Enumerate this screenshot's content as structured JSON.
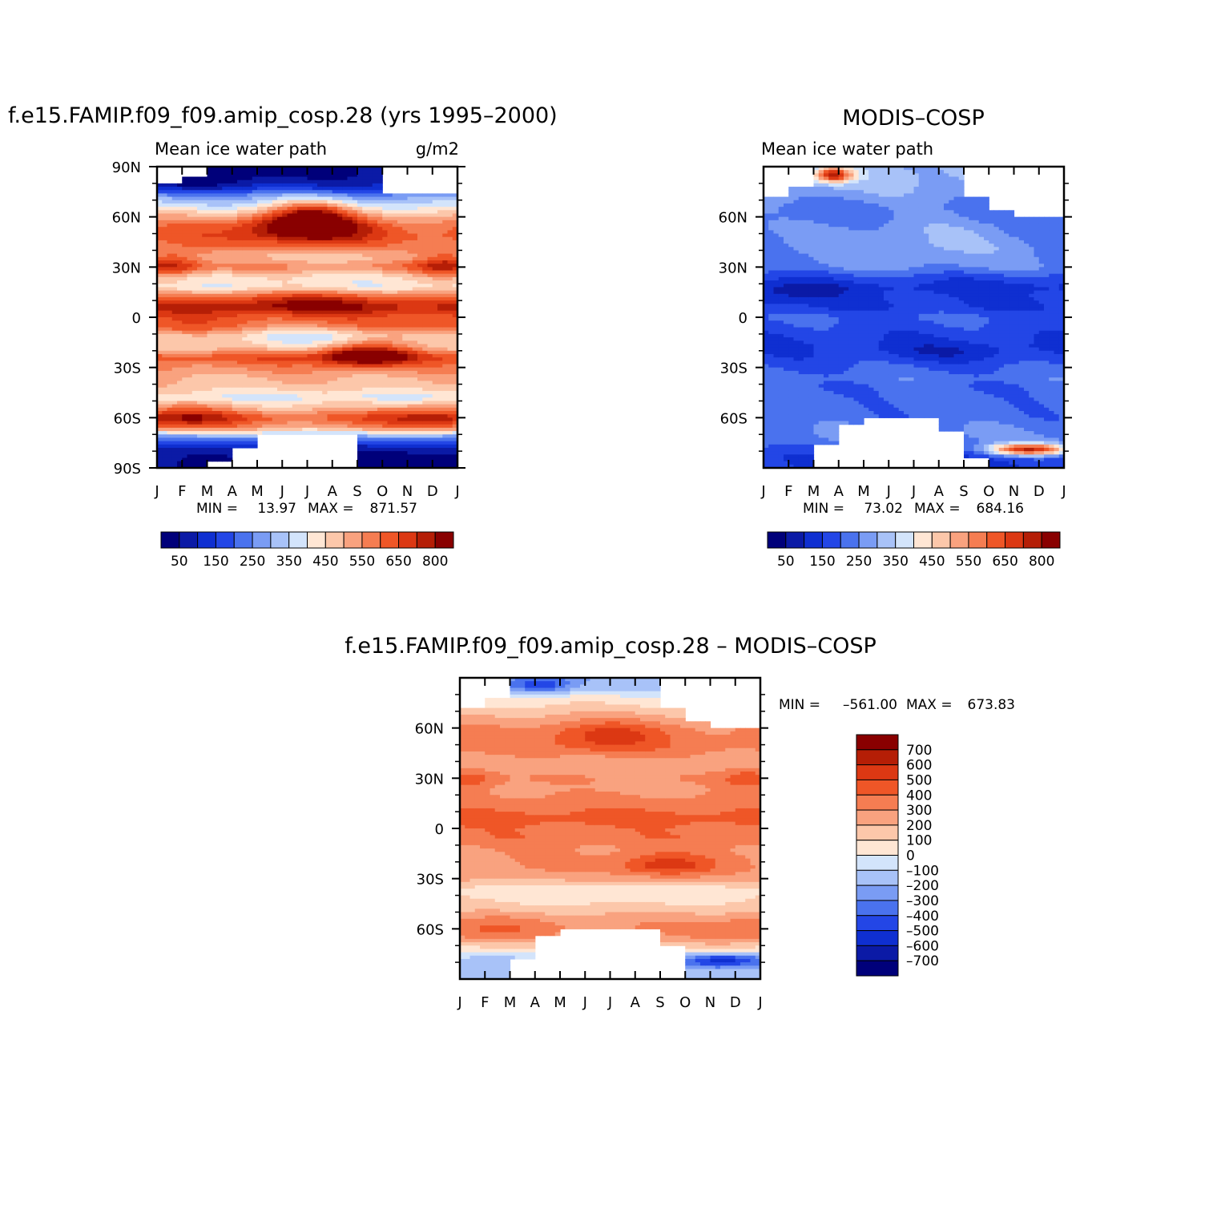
{
  "palette": {
    "blues": [
      "#00007a",
      "#0b1aa6",
      "#0f2fd1",
      "#2346e6",
      "#4a72ee",
      "#7a9cf4",
      "#a8c2f8",
      "#d3e4fb"
    ],
    "reds": [
      "#ffe6d4",
      "#fcc7aa",
      "#f9a27f",
      "#f57d52",
      "#ef5627",
      "#dc3813",
      "#b51e06",
      "#890000"
    ],
    "white": "#ffffff"
  },
  "chart_data": [
    {
      "id": "model",
      "type": "heatmap",
      "title": "f.e15.FAMIP.f09_f09.amip_cosp.28 (yrs 1995–2000)",
      "left_label": "Mean ice water path",
      "right_label": "g/m2",
      "x_ticks": [
        "J",
        "F",
        "M",
        "A",
        "M",
        "J",
        "J",
        "A",
        "S",
        "O",
        "N",
        "D",
        "J"
      ],
      "y_ticks": [
        "90N",
        "60N",
        "30N",
        "0",
        "30S",
        "60S",
        "90S"
      ],
      "y_tick_values": [
        90,
        60,
        30,
        0,
        -30,
        -60,
        -90
      ],
      "x_range": [
        0,
        12
      ],
      "y_range": [
        -90,
        90
      ],
      "stats_min_label": "MIN =",
      "stats_min": "13.97",
      "stats_max_label": "MAX =",
      "stats_max": "871.57",
      "colorbar_orientation": "horizontal",
      "colorbar_labels": [
        "50",
        "150",
        "250",
        "350",
        "450",
        "550",
        "650",
        "800"
      ],
      "zero_level": 0,
      "missing": [
        {
          "months": [
            0,
            1
          ],
          "lat": [
            80,
            90
          ]
        },
        {
          "months": [
            1,
            2
          ],
          "lat": [
            85,
            90
          ]
        },
        {
          "months": [
            9,
            12
          ],
          "lat": [
            75,
            90
          ]
        },
        {
          "months": [
            4,
            8
          ],
          "lat": [
            -90,
            -70
          ]
        },
        {
          "months": [
            3,
            4
          ],
          "lat": [
            -90,
            -78
          ]
        },
        {
          "months": [
            2,
            3
          ],
          "lat": [
            -90,
            -86
          ]
        },
        {
          "months": [
            7,
            8
          ],
          "lat": [
            -90,
            -75
          ]
        }
      ],
      "lat_profile": [
        [
          -88,
          40
        ],
        [
          -84,
          60
        ],
        [
          -78,
          100
        ],
        [
          -72,
          240
        ],
        [
          -66,
          520
        ],
        [
          -60,
          620
        ],
        [
          -54,
          480
        ],
        [
          -48,
          380
        ],
        [
          -42,
          470
        ],
        [
          -36,
          500
        ],
        [
          -30,
          560
        ],
        [
          -24,
          640
        ],
        [
          -18,
          480
        ],
        [
          -12,
          500
        ],
        [
          -6,
          640
        ],
        [
          0,
          640
        ],
        [
          6,
          700
        ],
        [
          12,
          560
        ],
        [
          18,
          400
        ],
        [
          24,
          430
        ],
        [
          30,
          560
        ],
        [
          36,
          470
        ],
        [
          42,
          560
        ],
        [
          48,
          620
        ],
        [
          54,
          600
        ],
        [
          60,
          500
        ],
        [
          66,
          380
        ],
        [
          72,
          280
        ],
        [
          78,
          120
        ],
        [
          84,
          60
        ],
        [
          90,
          40
        ]
      ],
      "blobs": [
        {
          "m": 6.0,
          "lat": 55,
          "sm": 1.6,
          "slat": 7,
          "amp": 300
        },
        {
          "m": 6.2,
          "lat": 64,
          "sm": 1.0,
          "slat": 5,
          "amp": 160
        },
        {
          "m": 8.3,
          "lat": -22,
          "sm": 1.2,
          "slat": 5,
          "amp": 300
        },
        {
          "m": 0.5,
          "lat": 32,
          "sm": 0.9,
          "slat": 6,
          "amp": 200
        },
        {
          "m": 11.6,
          "lat": 32,
          "sm": 0.9,
          "slat": 6,
          "amp": 200
        },
        {
          "m": 1.0,
          "lat": -60,
          "sm": 1.5,
          "slat": 6,
          "amp": 150
        },
        {
          "m": 11.0,
          "lat": -60,
          "sm": 1.5,
          "slat": 6,
          "amp": 140
        },
        {
          "m": 6.0,
          "lat": 10,
          "sm": 3.0,
          "slat": 5,
          "amp": 120
        },
        {
          "m": 2.0,
          "lat": 85,
          "sm": 1.8,
          "slat": 6,
          "amp": -80
        },
        {
          "m": 10.5,
          "lat": -85,
          "sm": 2.0,
          "slat": 6,
          "amp": -60
        },
        {
          "m": 6.0,
          "lat": -10,
          "sm": 2.5,
          "slat": 5,
          "amp": -150
        }
      ]
    },
    {
      "id": "obs",
      "type": "heatmap",
      "title": "MODIS–COSP",
      "left_label": "Mean ice water path",
      "right_label": "",
      "x_ticks": [
        "J",
        "F",
        "M",
        "A",
        "M",
        "J",
        "J",
        "A",
        "S",
        "O",
        "N",
        "D",
        "J"
      ],
      "y_ticks": [
        "60N",
        "30N",
        "0",
        "30S",
        "60S"
      ],
      "y_tick_values": [
        60,
        30,
        0,
        -30,
        -60
      ],
      "x_range": [
        0,
        12
      ],
      "y_range": [
        -90,
        90
      ],
      "stats_min_label": "MIN =",
      "stats_min": "73.02",
      "stats_max_label": "MAX =",
      "stats_max": "684.16",
      "colorbar_orientation": "horizontal",
      "colorbar_labels": [
        "50",
        "150",
        "250",
        "350",
        "450",
        "550",
        "650",
        "800"
      ],
      "zero_level": 0,
      "missing": [
        {
          "months": [
            0,
            1
          ],
          "lat": [
            72,
            90
          ]
        },
        {
          "months": [
            1,
            2
          ],
          "lat": [
            78,
            90
          ]
        },
        {
          "months": [
            8,
            12
          ],
          "lat": [
            73,
            90
          ]
        },
        {
          "months": [
            10,
            12
          ],
          "lat": [
            60,
            73
          ]
        },
        {
          "months": [
            9,
            10
          ],
          "lat": [
            65,
            73
          ]
        },
        {
          "months": [
            3,
            7
          ],
          "lat": [
            -90,
            -65
          ]
        },
        {
          "months": [
            4,
            7
          ],
          "lat": [
            -65,
            -60
          ]
        },
        {
          "months": [
            7,
            8
          ],
          "lat": [
            -90,
            -68
          ]
        },
        {
          "months": [
            2,
            3
          ],
          "lat": [
            -90,
            -77
          ]
        },
        {
          "months": [
            8,
            9
          ],
          "lat": [
            -90,
            -85
          ]
        }
      ],
      "lat_profile": [
        [
          -88,
          150
        ],
        [
          -84,
          150
        ],
        [
          -78,
          200
        ],
        [
          -72,
          250
        ],
        [
          -66,
          240
        ],
        [
          -60,
          220
        ],
        [
          -54,
          220
        ],
        [
          -48,
          220
        ],
        [
          -42,
          210
        ],
        [
          -36,
          230
        ],
        [
          -30,
          200
        ],
        [
          -24,
          170
        ],
        [
          -18,
          150
        ],
        [
          -12,
          160
        ],
        [
          -6,
          180
        ],
        [
          0,
          200
        ],
        [
          6,
          150
        ],
        [
          12,
          150
        ],
        [
          18,
          120
        ],
        [
          24,
          170
        ],
        [
          30,
          240
        ],
        [
          36,
          240
        ],
        [
          42,
          250
        ],
        [
          48,
          240
        ],
        [
          54,
          240
        ],
        [
          60,
          220
        ],
        [
          66,
          230
        ],
        [
          72,
          270
        ],
        [
          78,
          300
        ],
        [
          84,
          320
        ],
        [
          90,
          320
        ]
      ],
      "blobs": [
        {
          "m": 10.6,
          "lat": -79,
          "sm": 1.1,
          "slat": 2.5,
          "amp": 500
        },
        {
          "m": 2.8,
          "lat": 85,
          "sm": 0.5,
          "slat": 3,
          "amp": 420
        },
        {
          "m": 0.8,
          "lat": 14,
          "sm": 1.5,
          "slat": 4,
          "amp": -60
        },
        {
          "m": 7.5,
          "lat": -21,
          "sm": 2.0,
          "slat": 4,
          "amp": -50
        },
        {
          "m": 6.5,
          "lat": 45,
          "sm": 2.5,
          "slat": 12,
          "amp": 60
        }
      ]
    },
    {
      "id": "diff",
      "type": "heatmap",
      "title": "f.e15.FAMIP.f09_f09.amip_cosp.28 – MODIS–COSP",
      "left_label": "",
      "right_label": "",
      "x_ticks": [
        "J",
        "F",
        "M",
        "A",
        "M",
        "J",
        "J",
        "A",
        "S",
        "O",
        "N",
        "D",
        "J"
      ],
      "y_ticks": [
        "60N",
        "30N",
        "0",
        "30S",
        "60S"
      ],
      "y_tick_values": [
        60,
        30,
        0,
        -30,
        -60
      ],
      "x_range": [
        0,
        12
      ],
      "y_range": [
        -90,
        90
      ],
      "stats_min_label": "MIN =",
      "stats_min": "–561.00",
      "stats_max_label": "MAX =",
      "stats_max": "673.83",
      "colorbar_orientation": "vertical",
      "colorbar_labels": [
        "700",
        "600",
        "500",
        "400",
        "300",
        "200",
        "100",
        "0",
        "–100",
        "–200",
        "–300",
        "–400",
        "–500",
        "–600",
        "–700"
      ],
      "zero_level": 8,
      "missing": [
        {
          "months": [
            0,
            1
          ],
          "lat": [
            72,
            90
          ]
        },
        {
          "months": [
            1,
            2
          ],
          "lat": [
            78,
            90
          ]
        },
        {
          "months": [
            8,
            12
          ],
          "lat": [
            73,
            90
          ]
        },
        {
          "months": [
            10,
            12
          ],
          "lat": [
            60,
            73
          ]
        },
        {
          "months": [
            9,
            10
          ],
          "lat": [
            65,
            73
          ]
        },
        {
          "months": [
            4,
            8
          ],
          "lat": [
            -90,
            -60
          ]
        },
        {
          "months": [
            3,
            4
          ],
          "lat": [
            -90,
            -65
          ]
        },
        {
          "months": [
            2,
            3
          ],
          "lat": [
            -90,
            -78
          ]
        },
        {
          "months": [
            8,
            9
          ],
          "lat": [
            -90,
            -70
          ]
        }
      ],
      "lat_profile": [
        [
          -88,
          -160
        ],
        [
          -84,
          -140
        ],
        [
          -78,
          -120
        ],
        [
          -72,
          60
        ],
        [
          -66,
          220
        ],
        [
          -60,
          300
        ],
        [
          -54,
          260
        ],
        [
          -48,
          150
        ],
        [
          -42,
          90
        ],
        [
          -36,
          80
        ],
        [
          -30,
          230
        ],
        [
          -24,
          300
        ],
        [
          -18,
          300
        ],
        [
          -12,
          300
        ],
        [
          -6,
          380
        ],
        [
          0,
          380
        ],
        [
          6,
          450
        ],
        [
          12,
          380
        ],
        [
          18,
          320
        ],
        [
          24,
          270
        ],
        [
          30,
          300
        ],
        [
          36,
          230
        ],
        [
          42,
          260
        ],
        [
          48,
          330
        ],
        [
          54,
          330
        ],
        [
          60,
          300
        ],
        [
          66,
          220
        ],
        [
          72,
          120
        ],
        [
          78,
          40
        ],
        [
          84,
          -120
        ],
        [
          90,
          -160
        ]
      ],
      "blobs": [
        {
          "m": 5.9,
          "lat": 55,
          "sm": 1.6,
          "slat": 7,
          "amp": 230
        },
        {
          "m": 8.2,
          "lat": -22,
          "sm": 1.3,
          "slat": 5,
          "amp": 270
        },
        {
          "m": 0.4,
          "lat": 30,
          "sm": 0.8,
          "slat": 5,
          "amp": 180
        },
        {
          "m": 11.6,
          "lat": 30,
          "sm": 0.8,
          "slat": 5,
          "amp": 180
        },
        {
          "m": 1.2,
          "lat": -62,
          "sm": 1.6,
          "slat": 6,
          "amp": 120
        },
        {
          "m": 11.2,
          "lat": -62,
          "sm": 1.5,
          "slat": 6,
          "amp": 120
        },
        {
          "m": 10.5,
          "lat": -79,
          "sm": 1.2,
          "slat": 3,
          "amp": -450
        },
        {
          "m": 3.2,
          "lat": 86,
          "sm": 1.0,
          "slat": 4,
          "amp": -350
        },
        {
          "m": 6.0,
          "lat": -38,
          "sm": 3.5,
          "slat": 5,
          "amp": -60
        }
      ]
    }
  ]
}
